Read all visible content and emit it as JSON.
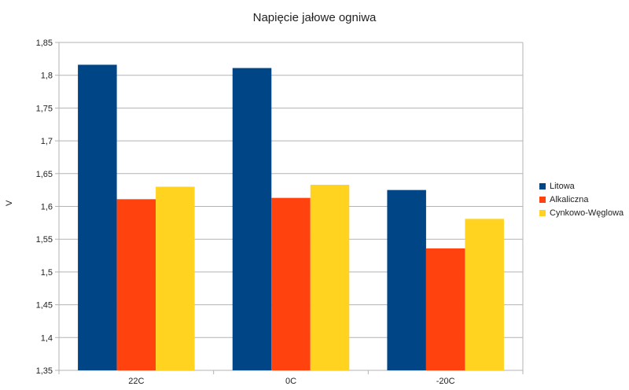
{
  "chart_data": {
    "type": "bar",
    "title": "Napięcie jałowe ogniwa",
    "xlabel": "",
    "ylabel": "V",
    "categories": [
      "22C",
      "0C",
      "-20C"
    ],
    "series": [
      {
        "name": "Litowa",
        "values": [
          1.816,
          1.811,
          1.625
        ],
        "color": "#004586"
      },
      {
        "name": "Alkaliczna",
        "values": [
          1.611,
          1.613,
          1.536
        ],
        "color": "#ff420e"
      },
      {
        "name": "Cynkowo-Węglowa",
        "values": [
          1.63,
          1.633,
          1.581
        ],
        "color": "#ffd320"
      }
    ],
    "ylim": [
      1.35,
      1.85
    ],
    "yticks": [
      "1,35",
      "1,4",
      "1,45",
      "1,5",
      "1,55",
      "1,6",
      "1,65",
      "1,7",
      "1,75",
      "1,8",
      "1,85"
    ],
    "grid": true,
    "legend_position": "right"
  }
}
